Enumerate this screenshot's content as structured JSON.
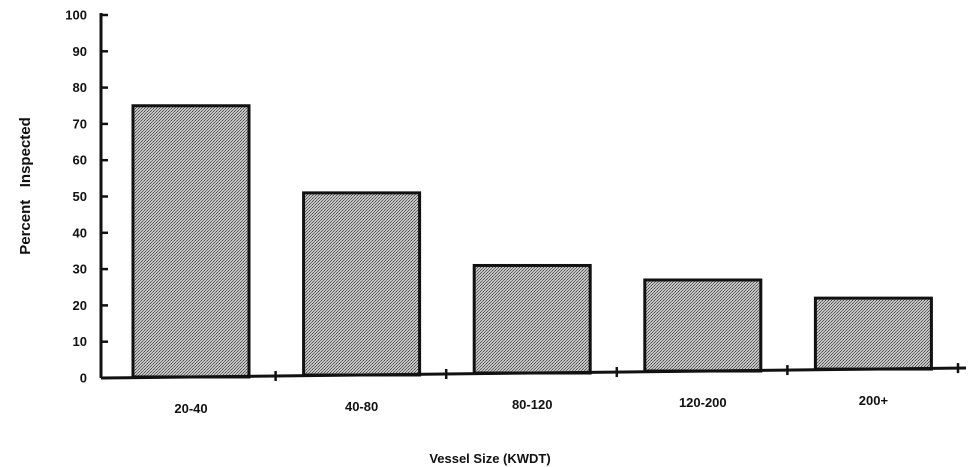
{
  "chart_data": {
    "type": "bar",
    "title": "",
    "xlabel": "Vessel Size (KWDT)",
    "ylabel": "Percent   Inspected",
    "categories": [
      "20-40",
      "40-80",
      "80-120",
      "120-200",
      "200+"
    ],
    "values": [
      75,
      51,
      31,
      27,
      22
    ],
    "ylim": [
      0,
      100
    ],
    "yticks": [
      0,
      10,
      20,
      30,
      40,
      50,
      60,
      70,
      80,
      90,
      100
    ],
    "grid": false,
    "legend": "none",
    "colors": {
      "bar_fill": "#b8b8b8",
      "bar_stroke": "#111111",
      "axis": "#111111"
    }
  }
}
